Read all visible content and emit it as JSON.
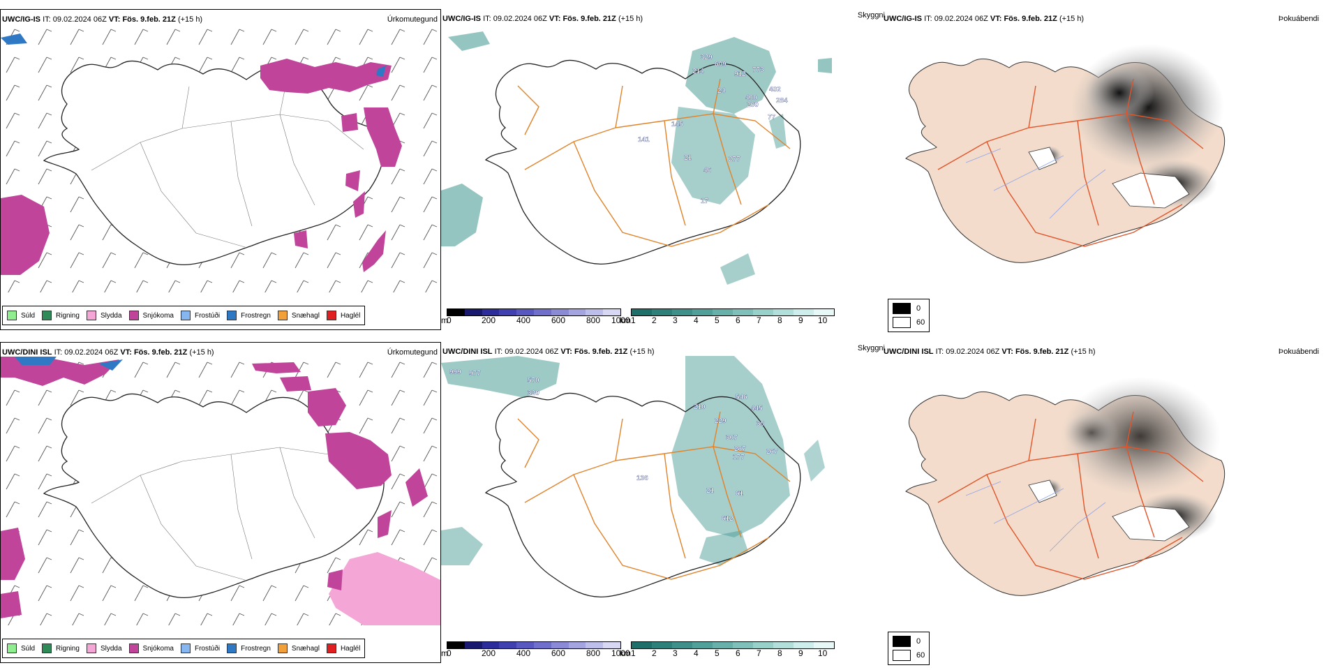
{
  "rows": [
    {
      "id": "top",
      "panels": {
        "precip": {
          "model": "UWC/IG-IS",
          "it_label": "IT:",
          "it": "09.02.2024 06Z",
          "vt_label": "VT:",
          "vt": "Fös. 9.feb. 21Z",
          "lead": "(+15 h)",
          "title": "Úrkomutegund"
        },
        "clouds": {
          "model": "UWC/IG-IS",
          "it_label": "IT:",
          "it": "09.02.2024 06Z",
          "vt_label": "VT:",
          "vt": "Fös. 9.feb. 21Z",
          "lead": "(+15 h)",
          "title": "Skyggni",
          "labels": [
            "214",
            "609",
            "912",
            "773",
            "329",
            "400",
            "24",
            "200",
            "145",
            "141",
            "21",
            "277",
            "46",
            "17",
            "402",
            "284",
            "77"
          ]
        },
        "fog": {
          "model": "UWC/IG-IS",
          "it_label": "IT:",
          "it": "09.02.2024 06Z",
          "vt_label": "VT:",
          "vt": "Fös. 9.feb. 21Z",
          "lead": "(+15 h)",
          "title": "Þokuábendi"
        }
      }
    },
    {
      "id": "bottom",
      "panels": {
        "precip": {
          "model": "UWC/DINI ISL",
          "it_label": "IT:",
          "it": "09.02.2024 06Z",
          "vt_label": "VT:",
          "vt": "Fös. 9.feb. 21Z",
          "lead": "(+15 h)",
          "title": "Úrkomutegund"
        },
        "clouds": {
          "model": "UWC/DINI ISL",
          "it_label": "IT:",
          "it": "09.02.2024 06Z",
          "vt_label": "VT:",
          "vt": "Fös. 9.feb. 21Z",
          "lead": "(+15 h)",
          "title": "Skyggni",
          "labels": [
            "999",
            "977",
            "570",
            "320",
            "210",
            "546",
            "445",
            "229",
            "30",
            "307",
            "287",
            "177",
            "21",
            "136",
            "612",
            "61",
            "267"
          ]
        },
        "fog": {
          "model": "UWC/DINI ISL",
          "it_label": "IT:",
          "it": "09.02.2024 06Z",
          "vt_label": "VT:",
          "vt": "Fös. 9.feb. 21Z",
          "lead": "(+15 h)",
          "title": "Þokuábendi"
        }
      }
    }
  ],
  "precip_legend": [
    {
      "label": "Súld",
      "color": "#90ee90"
    },
    {
      "label": "Rigning",
      "color": "#2e8b57"
    },
    {
      "label": "Slydda",
      "color": "#f4a6d7"
    },
    {
      "label": "Snjókoma",
      "color": "#c0449a"
    },
    {
      "label": "Frostúði",
      "color": "#87b7f0"
    },
    {
      "label": "Frostregn",
      "color": "#2f78c4"
    },
    {
      "label": "Snæhagl",
      "color": "#f2a03a"
    },
    {
      "label": "Haglél",
      "color": "#e02020"
    }
  ],
  "cloud_base_scale": {
    "unit": "m",
    "ticks": [
      "0",
      "200",
      "400",
      "600",
      "800",
      "1000"
    ]
  },
  "visibility_scale": {
    "unit": "km",
    "ticks": [
      "1",
      "2",
      "3",
      "4",
      "5",
      "6",
      "7",
      "8",
      "9",
      "10"
    ]
  },
  "fog_legend": {
    "min": "0",
    "max": "60"
  },
  "colors": {
    "snow": "#c0449a",
    "cloud_teal": "#4e9e98",
    "road": "#e0832a",
    "fog_land": "#f3dccb",
    "fog_road": "#e0552a"
  }
}
